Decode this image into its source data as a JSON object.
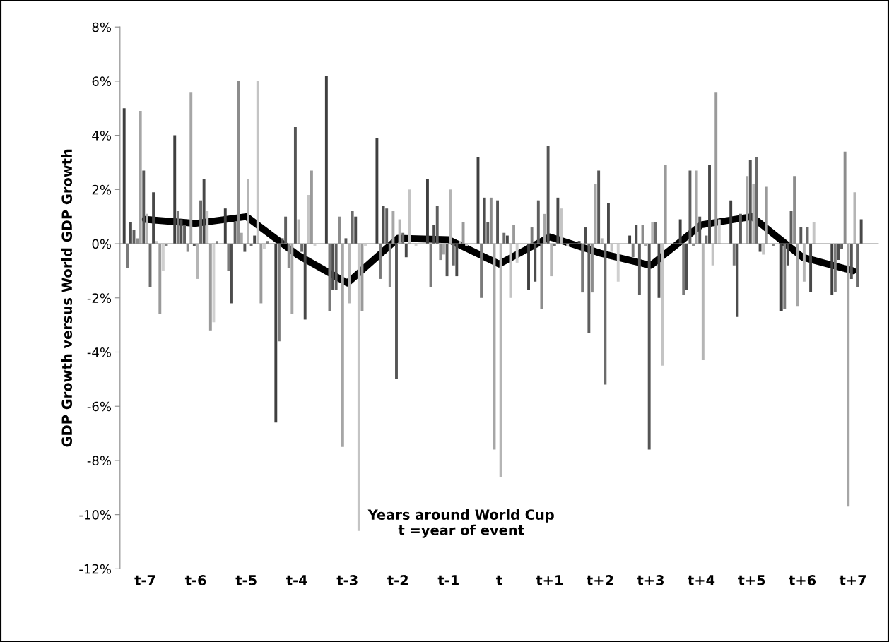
{
  "chart_data": {
    "type": "bar",
    "xlabel": "Years around World Cup\nt =year of event",
    "ylabel": "GDP Growth versus World GDP Growth",
    "categories": [
      "t-7",
      "t-6",
      "t-5",
      "t-4",
      "t-3",
      "t-2",
      "t-1",
      "t",
      "t+1",
      "t+2",
      "t+3",
      "t+4",
      "t+5",
      "t+6",
      "t+7"
    ],
    "ylim": [
      -12,
      8
    ],
    "yticks": [
      {
        "value": -12,
        "label": "-12%"
      },
      {
        "value": -10,
        "label": "-10%"
      },
      {
        "value": -8,
        "label": "-8%"
      },
      {
        "value": -6,
        "label": "-6%"
      },
      {
        "value": -4,
        "label": "-4%"
      },
      {
        "value": -2,
        "label": "-2%"
      },
      {
        "value": 0,
        "label": "0%"
      },
      {
        "value": 2,
        "label": "2%"
      },
      {
        "value": 4,
        "label": "4%"
      },
      {
        "value": 6,
        "label": "6%"
      },
      {
        "value": 8,
        "label": "8%"
      }
    ],
    "series": [
      {
        "color": "#3f3f3f",
        "values": [
          5.0,
          4.0,
          1.3,
          -6.6,
          6.2,
          3.9,
          2.4,
          3.2,
          -1.7,
          0.1,
          0.3,
          0.9,
          1.6,
          -2.5,
          -1.9
        ]
      },
      {
        "color": "#7a7a7a",
        "values": [
          -0.9,
          1.2,
          -1.0,
          -3.6,
          -2.5,
          -1.3,
          -1.6,
          -2.0,
          0.6,
          -1.8,
          -0.5,
          -1.9,
          -0.8,
          -2.4,
          -1.8
        ]
      },
      {
        "color": "#4d4d4d",
        "values": [
          0.8,
          0.9,
          -2.2,
          0.2,
          -1.7,
          1.4,
          0.7,
          1.7,
          -1.4,
          0.6,
          0.7,
          -1.7,
          -2.7,
          -0.8,
          -0.6
        ]
      },
      {
        "color": "#5e5e5e",
        "values": [
          0.5,
          0.7,
          0.8,
          1.0,
          -1.7,
          1.3,
          1.4,
          0.8,
          1.6,
          -3.3,
          -1.9,
          2.7,
          1.1,
          1.2,
          -0.2
        ]
      },
      {
        "color": "#8c8c8c",
        "values": [
          0.2,
          -0.3,
          6.0,
          -0.9,
          1.0,
          -1.6,
          -0.6,
          1.7,
          -2.4,
          -1.8,
          0.7,
          -0.1,
          0.0,
          2.5,
          3.4
        ]
      },
      {
        "color": "#a6a6a6",
        "values": [
          4.9,
          5.6,
          0.4,
          -2.6,
          -7.5,
          1.2,
          -0.4,
          -7.6,
          1.1,
          2.2,
          -0.1,
          2.7,
          2.5,
          -2.3,
          -9.7
        ]
      },
      {
        "color": "#555555",
        "values": [
          2.7,
          -0.1,
          -0.3,
          4.3,
          0.2,
          -5.0,
          -1.2,
          1.6,
          3.6,
          2.7,
          -7.6,
          1.0,
          3.1,
          0.6,
          -1.3
        ]
      },
      {
        "color": "#b5b5b5",
        "values": [
          1.1,
          -1.3,
          2.4,
          0.9,
          -2.2,
          0.9,
          2.0,
          -8.6,
          -1.2,
          0.2,
          0.8,
          -4.3,
          2.2,
          -1.4,
          1.9
        ]
      },
      {
        "color": "#6b6b6b",
        "values": [
          -1.6,
          1.6,
          -0.1,
          -0.3,
          1.2,
          0.4,
          -0.8,
          0.4,
          -0.1,
          -5.2,
          0.8,
          0.3,
          3.2,
          0.6,
          -1.6
        ]
      },
      {
        "color": "#484848",
        "values": [
          1.9,
          2.4,
          0.3,
          -2.8,
          1.0,
          -0.5,
          -1.2,
          0.3,
          1.7,
          1.5,
          -2.0,
          2.9,
          -0.3,
          -1.8,
          0.9
        ]
      },
      {
        "color": "#c4c4c4",
        "values": [
          0.1,
          1.2,
          6.0,
          1.8,
          -10.6,
          2.0,
          0.1,
          -2.0,
          1.3,
          -0.3,
          -4.5,
          -0.8,
          -0.4,
          0.8,
          0.0
        ]
      },
      {
        "color": "#9a9a9a",
        "values": [
          -2.6,
          -3.2,
          -2.2,
          2.7,
          -2.5,
          0.0,
          0.8,
          0.7,
          0.0,
          0.0,
          2.9,
          5.6,
          2.1,
          0.0,
          0.0
        ]
      },
      {
        "color": "#d0d0d0",
        "values": [
          -1.0,
          -2.9,
          -0.2,
          -0.1,
          -0.1,
          -0.1,
          -0.1,
          -0.7,
          -0.1,
          -1.4,
          0.0,
          0.9,
          0.0,
          0.0,
          0.0
        ]
      },
      {
        "color": "#7f7f7f",
        "values": [
          -0.1,
          0.1,
          0.1,
          0.0,
          0.0,
          0.0,
          0.0,
          0.0,
          0.0,
          0.0,
          0.0,
          0.0,
          -0.1,
          0.0,
          0.0
        ]
      },
      {
        "type": "line",
        "color": "#000000",
        "values": [
          0.9,
          0.75,
          1.0,
          -0.4,
          -1.45,
          0.2,
          0.15,
          -0.75,
          0.25,
          -0.35,
          -0.8,
          0.7,
          1.0,
          -0.5,
          -1.0
        ]
      }
    ]
  }
}
